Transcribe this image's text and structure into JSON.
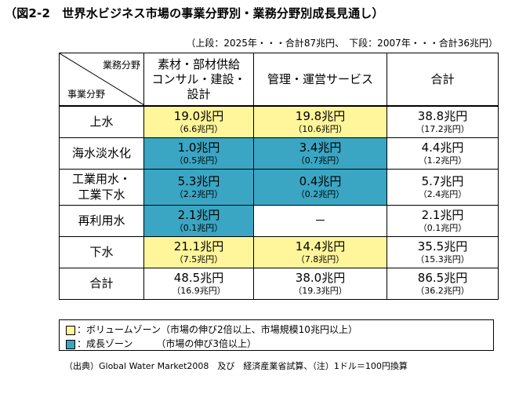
{
  "title": "（図2-2　世界水ビジネス市場の事業分野別・業務分野別成長見通し）",
  "subtitle": "（上段：2025年・・・合計87兆円、　下段：2007年・・・合計36兆円）",
  "corner": {
    "top": "業務分野",
    "bottom": "事業分野"
  },
  "columns": [
    [
      "素材・部材供給",
      "コンサル・建設・",
      "設計"
    ],
    [
      "管理・運営サービス"
    ],
    [
      "合計"
    ]
  ],
  "rows": [
    {
      "label": [
        "上水"
      ],
      "cells": [
        {
          "main": "19.0兆円",
          "sub": "（6.6兆円）",
          "color": "yellow"
        },
        {
          "main": "19.8兆円",
          "sub": "（10.6兆円）",
          "color": "yellow"
        },
        {
          "main": "38.8兆円",
          "sub": "（17.2兆円）",
          "color": "white"
        }
      ]
    },
    {
      "label": [
        "海水淡水化"
      ],
      "cells": [
        {
          "main": "1.0兆円",
          "sub": "（0.5兆円）",
          "color": "blue"
        },
        {
          "main": "3.4兆円",
          "sub": "（0.7兆円）",
          "color": "blue"
        },
        {
          "main": "4.4兆円",
          "sub": "（1.2兆円）",
          "color": "white"
        }
      ]
    },
    {
      "label": [
        "工業用水・",
        "工業下水"
      ],
      "cells": [
        {
          "main": "5.3兆円",
          "sub": "（2.2兆円）",
          "color": "blue"
        },
        {
          "main": "0.4兆円",
          "sub": "（0.2兆円）",
          "color": "blue"
        },
        {
          "main": "5.7兆円",
          "sub": "（2.4兆円）",
          "color": "white"
        }
      ]
    },
    {
      "label": [
        "再利用水"
      ],
      "cells": [
        {
          "main": "2.1兆円",
          "sub": "（0.1兆円）",
          "color": "blue"
        },
        {
          "main": "－",
          "sub": "",
          "color": "white"
        },
        {
          "main": "2.1兆円",
          "sub": "（0.1兆円）",
          "color": "white"
        }
      ]
    },
    {
      "label": [
        "下水"
      ],
      "cells": [
        {
          "main": "21.1兆円",
          "sub": "（7.5兆円）",
          "color": "yellow"
        },
        {
          "main": "14.4兆円",
          "sub": "（7.8兆円）",
          "color": "yellow"
        },
        {
          "main": "35.5兆円",
          "sub": "（15.3兆円）",
          "color": "white"
        }
      ]
    },
    {
      "label": [
        "合計"
      ],
      "cells": [
        {
          "main": "48.5兆円",
          "sub": "（16.9兆円）",
          "color": "white"
        },
        {
          "main": "38.0兆円",
          "sub": "（19.3兆円）",
          "color": "white"
        },
        {
          "main": "86.5兆円",
          "sub": "（36.2兆円）",
          "color": "white"
        }
      ]
    }
  ],
  "legend": {
    "yellow": "：ボリュームゾーン（市場の伸び2倍以上、市場規模10兆円以上）",
    "blue": "：成長ゾーン　　　（市場の伸び3倍以上）"
  },
  "source": "（出典）Global Water Market2008　及び　経済産業省試算、（注）1ドル＝100円換算",
  "colors": {
    "yellow": "#fff59a",
    "blue": "#3aa6c3",
    "white": "#ffffff"
  }
}
